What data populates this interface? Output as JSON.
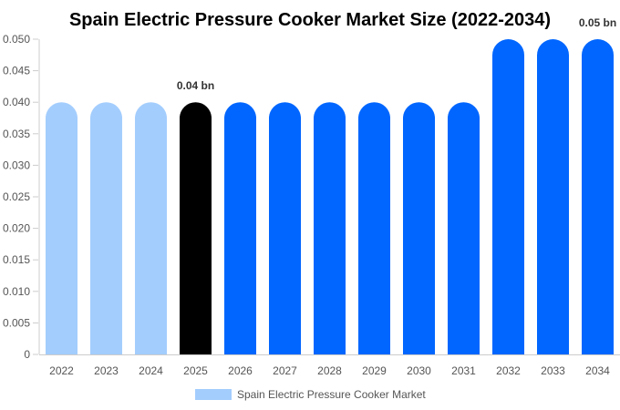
{
  "chart_data": {
    "type": "bar",
    "title": "Spain Electric Pressure Cooker Market Size (2022-2034)",
    "xlabel": "",
    "ylabel": "",
    "categories": [
      "2022",
      "2023",
      "2024",
      "2025",
      "2026",
      "2027",
      "2028",
      "2029",
      "2030",
      "2031",
      "2032",
      "2033",
      "2034"
    ],
    "series": [
      {
        "name": "Spain Electric Pressure Cooker Market",
        "values": [
          0.04,
          0.04,
          0.04,
          0.04,
          0.04,
          0.04,
          0.04,
          0.04,
          0.04,
          0.04,
          0.05,
          0.05,
          0.05
        ]
      }
    ],
    "bar_colors": [
      "#a3cdfd",
      "#a3cdfd",
      "#a3cdfd",
      "#000000",
      "#0066ff",
      "#0066ff",
      "#0066ff",
      "#0066ff",
      "#0066ff",
      "#0066ff",
      "#0066ff",
      "#0066ff",
      "#0066ff"
    ],
    "legend_color": "#a3cdfd",
    "data_labels": [
      {
        "category": "2025",
        "text": "0.04 bn"
      },
      {
        "category": "2034",
        "text": "0.05 bn"
      }
    ],
    "ylim": [
      0,
      0.05
    ],
    "yticks": [
      0,
      0.005,
      0.01,
      0.015,
      0.02,
      0.025,
      0.03,
      0.035,
      0.04,
      0.045,
      0.05
    ],
    "ytick_labels": [
      "0",
      "0.005",
      "0.010",
      "0.015",
      "0.020",
      "0.025",
      "0.030",
      "0.035",
      "0.040",
      "0.045",
      "0.050"
    ],
    "grid": false,
    "legend_position": "bottom"
  }
}
